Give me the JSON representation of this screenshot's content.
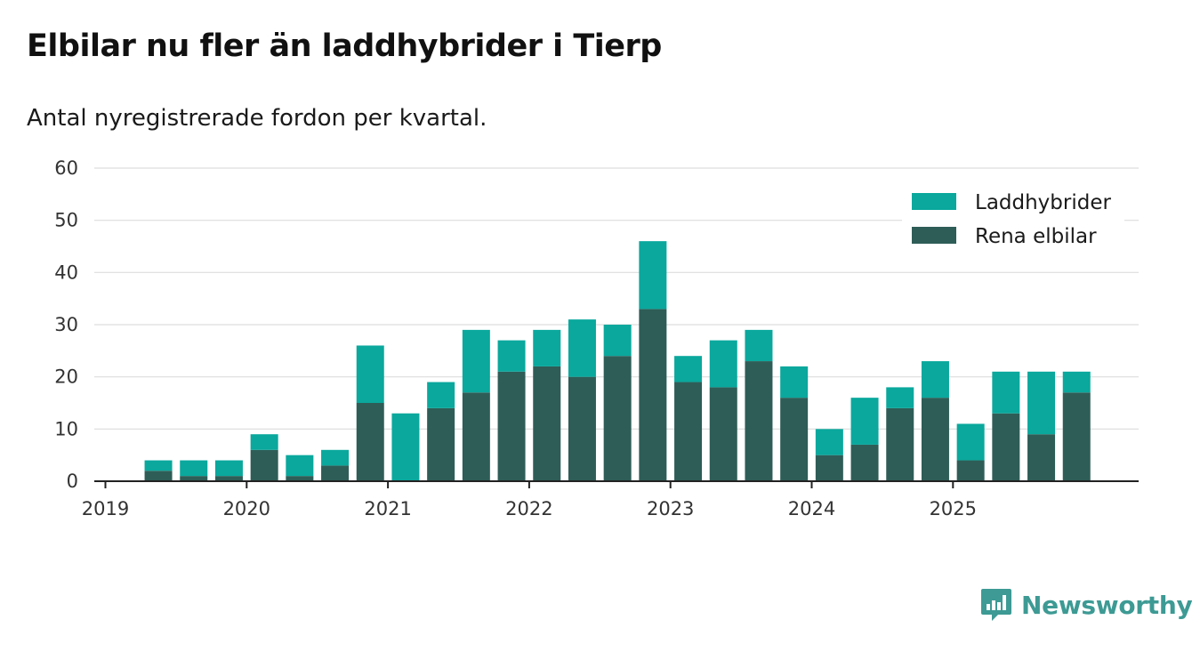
{
  "header": {
    "title": "Elbilar nu fler än laddhybrider i Tierp",
    "subtitle": "Antal nyregistrerade fordon per kvartal."
  },
  "brand": {
    "name": "Newsworthy",
    "icon": "bar-chart-speech-bubble-icon"
  },
  "colors": {
    "laddhybrider": "#0aa89d",
    "elbilar": "#2e5d57",
    "grid": "#dddddd",
    "axis": "#222222",
    "brand": "#3d9a94"
  },
  "chart_data": {
    "type": "bar",
    "stacked": true,
    "title": "Elbilar nu fler än laddhybrider i Tierp",
    "subtitle": "Antal nyregistrerade fordon per kvartal.",
    "xlabel": "",
    "ylabel": "",
    "ylim": [
      0,
      60
    ],
    "yticks": [
      0,
      10,
      20,
      30,
      40,
      50,
      60
    ],
    "xticks": [
      "2019",
      "2020",
      "2021",
      "2022",
      "2023",
      "2024",
      "2025"
    ],
    "grid": true,
    "legend_position": "top-right",
    "categories": [
      "2019 Q1",
      "2019 Q2",
      "2019 Q3",
      "2019 Q4",
      "2020 Q1",
      "2020 Q2",
      "2020 Q3",
      "2020 Q4",
      "2021 Q1",
      "2021 Q2",
      "2021 Q3",
      "2021 Q4",
      "2022 Q1",
      "2022 Q2",
      "2022 Q3",
      "2022 Q4",
      "2023 Q1",
      "2023 Q2",
      "2023 Q3",
      "2023 Q4",
      "2024 Q1",
      "2024 Q2",
      "2024 Q3",
      "2024 Q4",
      "2025 Q1",
      "2025 Q2",
      "2025 Q3",
      "2025 Q4"
    ],
    "series": [
      {
        "name": "Rena elbilar",
        "values": [
          0,
          2,
          1,
          1,
          6,
          1,
          3,
          15,
          0,
          14,
          17,
          21,
          22,
          20,
          24,
          33,
          19,
          18,
          23,
          16,
          5,
          7,
          14,
          16,
          4,
          13,
          9,
          17
        ]
      },
      {
        "name": "Laddhybrider",
        "values": [
          0,
          2,
          3,
          3,
          3,
          4,
          3,
          11,
          13,
          5,
          12,
          6,
          7,
          11,
          6,
          13,
          5,
          9,
          6,
          6,
          5,
          9,
          4,
          7,
          7,
          8,
          12,
          4
        ]
      }
    ],
    "legend": [
      "Laddhybrider",
      "Rena elbilar"
    ]
  }
}
